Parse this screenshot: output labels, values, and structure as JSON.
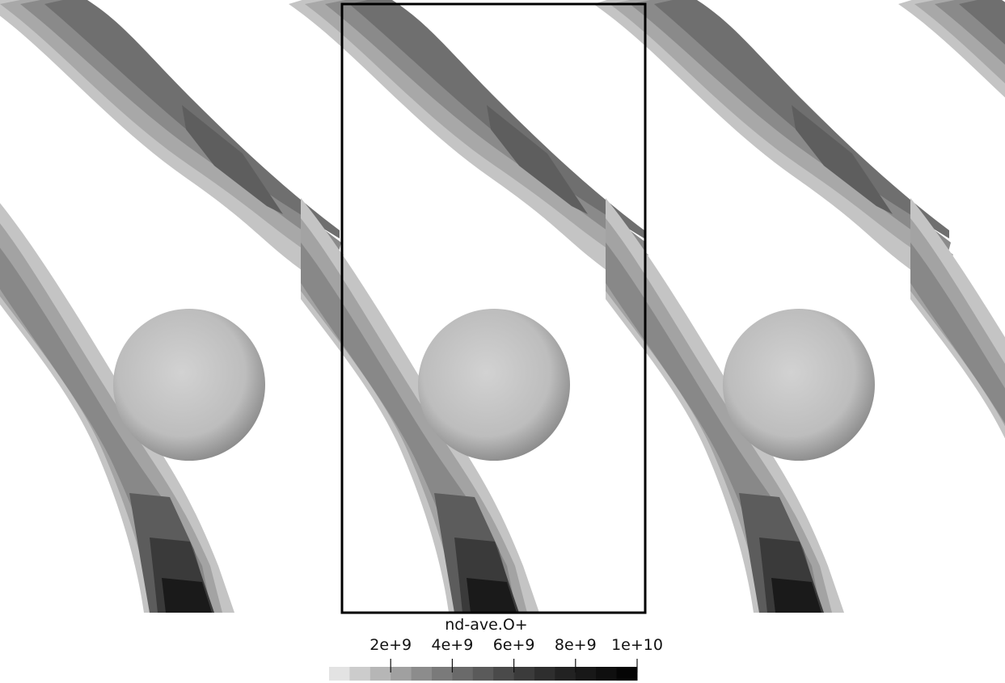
{
  "colorbar": {
    "title": "nd-ave.O+",
    "ticks": [
      {
        "label": "2e+9",
        "value": 2000000000
      },
      {
        "label": "4e+9",
        "value": 4000000000
      },
      {
        "label": "6e+9",
        "value": 6000000000
      },
      {
        "label": "8e+9",
        "value": 8000000000
      },
      {
        "label": "1e+10",
        "value": 10000000000
      }
    ],
    "range": [
      0,
      10000000000
    ],
    "colors": [
      "#e3e3e3",
      "#cccccc",
      "#b6b6b6",
      "#a0a0a0",
      "#8c8c8c",
      "#7a7a7a",
      "#6a6a6a",
      "#5a5a5a",
      "#4a4a4a",
      "#3b3b3b",
      "#2e2e2e",
      "#222222",
      "#181818",
      "#0f0f0f",
      "#050505"
    ]
  },
  "scene": {
    "background": "#ffffff",
    "band_colors": [
      "#c4c4c4",
      "#a8a8a8",
      "#8c8c8c",
      "#777777",
      "#6a6a6a",
      "#5c5c5c"
    ],
    "sphere_color": "#cfcfcf",
    "dark_core_color": "#1a1a1a",
    "frame_color": "#000000"
  }
}
